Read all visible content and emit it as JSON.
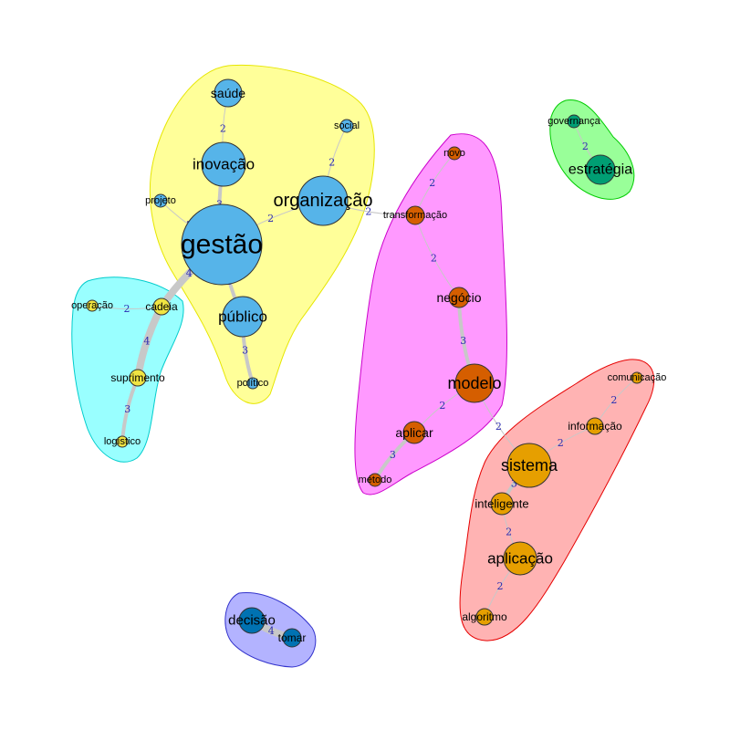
{
  "graph": {
    "title": "",
    "clusters": [
      {
        "id": "yellow",
        "fill": "#ffff99",
        "stroke": "#e6e600"
      },
      {
        "id": "cyan",
        "fill": "#99ffff",
        "stroke": "#00cccc"
      },
      {
        "id": "magenta",
        "fill": "#ff99ff",
        "stroke": "#cc00cc"
      },
      {
        "id": "green",
        "fill": "#99ff99",
        "stroke": "#00cc00"
      },
      {
        "id": "red",
        "fill": "#ffb3b3",
        "stroke": "#e60000"
      },
      {
        "id": "blue",
        "fill": "#b3b3ff",
        "stroke": "#3333cc"
      }
    ],
    "nodes": [
      {
        "id": "saude",
        "label": "saúde",
        "cluster": "yellow",
        "color": "#56b4e9"
      },
      {
        "id": "inovacao",
        "label": "inovação",
        "cluster": "yellow",
        "color": "#56b4e9"
      },
      {
        "id": "social",
        "label": "social",
        "cluster": "yellow",
        "color": "#56b4e9"
      },
      {
        "id": "organizacao",
        "label": "organização",
        "cluster": "yellow",
        "color": "#56b4e9"
      },
      {
        "id": "projeto",
        "label": "projeto",
        "cluster": "yellow",
        "color": "#56b4e9"
      },
      {
        "id": "gestao",
        "label": "gestão",
        "cluster": "yellow",
        "color": "#56b4e9"
      },
      {
        "id": "publico",
        "label": "público",
        "cluster": "yellow",
        "color": "#56b4e9"
      },
      {
        "id": "politico",
        "label": "político",
        "cluster": "yellow",
        "color": "#56b4e9"
      },
      {
        "id": "operacao",
        "label": "operação",
        "cluster": "cyan",
        "color": "#f0e442"
      },
      {
        "id": "cadeia",
        "label": "cadeia",
        "cluster": "cyan",
        "color": "#f0e442"
      },
      {
        "id": "suprimento",
        "label": "suprimento",
        "cluster": "cyan",
        "color": "#f0e442"
      },
      {
        "id": "logistico",
        "label": "logístico",
        "cluster": "cyan",
        "color": "#f0e442"
      },
      {
        "id": "novo",
        "label": "novo",
        "cluster": "magenta",
        "color": "#d55e00"
      },
      {
        "id": "transformacao",
        "label": "transformação",
        "cluster": "magenta",
        "color": "#d55e00"
      },
      {
        "id": "negocio",
        "label": "negócio",
        "cluster": "magenta",
        "color": "#d55e00"
      },
      {
        "id": "modelo",
        "label": "modelo",
        "cluster": "magenta",
        "color": "#d55e00"
      },
      {
        "id": "aplicar",
        "label": "aplicar",
        "cluster": "magenta",
        "color": "#d55e00"
      },
      {
        "id": "metodo",
        "label": "método",
        "cluster": "magenta",
        "color": "#d55e00"
      },
      {
        "id": "governanca",
        "label": "governança",
        "cluster": "green",
        "color": "#009e73"
      },
      {
        "id": "estrategia",
        "label": "estratégia",
        "cluster": "green",
        "color": "#009e73"
      },
      {
        "id": "comunicacao",
        "label": "comunicação",
        "cluster": "red",
        "color": "#e69f00"
      },
      {
        "id": "informacao",
        "label": "informação",
        "cluster": "red",
        "color": "#e69f00"
      },
      {
        "id": "sistema",
        "label": "sistema",
        "cluster": "red",
        "color": "#e69f00"
      },
      {
        "id": "inteligente",
        "label": "inteligente",
        "cluster": "red",
        "color": "#e69f00"
      },
      {
        "id": "aplicacao",
        "label": "aplicação",
        "cluster": "red",
        "color": "#e69f00"
      },
      {
        "id": "algoritmo",
        "label": "algoritmo",
        "cluster": "red",
        "color": "#e69f00"
      },
      {
        "id": "decisao",
        "label": "decisão",
        "cluster": "blue",
        "color": "#0072b2"
      },
      {
        "id": "tomar",
        "label": "tomar",
        "cluster": "blue",
        "color": "#0072b2"
      }
    ],
    "edges": [
      {
        "source": "saude",
        "target": "inovacao",
        "weight": "2"
      },
      {
        "source": "inovacao",
        "target": "gestao",
        "weight": "3"
      },
      {
        "source": "social",
        "target": "organizacao",
        "weight": "2"
      },
      {
        "source": "projeto",
        "target": "gestao",
        "weight": "2"
      },
      {
        "source": "organizacao",
        "target": "gestao",
        "weight": "2"
      },
      {
        "source": "gestao",
        "target": "publico",
        "weight": "3"
      },
      {
        "source": "publico",
        "target": "politico",
        "weight": "3"
      },
      {
        "source": "gestao",
        "target": "cadeia",
        "weight": "4"
      },
      {
        "source": "operacao",
        "target": "cadeia",
        "weight": "2"
      },
      {
        "source": "cadeia",
        "target": "suprimento",
        "weight": "4"
      },
      {
        "source": "suprimento",
        "target": "logistico",
        "weight": "3"
      },
      {
        "source": "organizacao",
        "target": "transformacao",
        "weight": "2"
      },
      {
        "source": "novo",
        "target": "transformacao",
        "weight": "2"
      },
      {
        "source": "transformacao",
        "target": "negocio",
        "weight": "2"
      },
      {
        "source": "negocio",
        "target": "modelo",
        "weight": "3"
      },
      {
        "source": "modelo",
        "target": "aplicar",
        "weight": "2"
      },
      {
        "source": "aplicar",
        "target": "metodo",
        "weight": "3"
      },
      {
        "source": "modelo",
        "target": "sistema",
        "weight": "2"
      },
      {
        "source": "governanca",
        "target": "estrategia",
        "weight": "2"
      },
      {
        "source": "comunicacao",
        "target": "informacao",
        "weight": "2"
      },
      {
        "source": "informacao",
        "target": "sistema",
        "weight": "2"
      },
      {
        "source": "sistema",
        "target": "inteligente",
        "weight": "3"
      },
      {
        "source": "inteligente",
        "target": "aplicacao",
        "weight": "2"
      },
      {
        "source": "aplicacao",
        "target": "algoritmo",
        "weight": "2"
      },
      {
        "source": "decisao",
        "target": "tomar",
        "weight": "4"
      }
    ]
  }
}
